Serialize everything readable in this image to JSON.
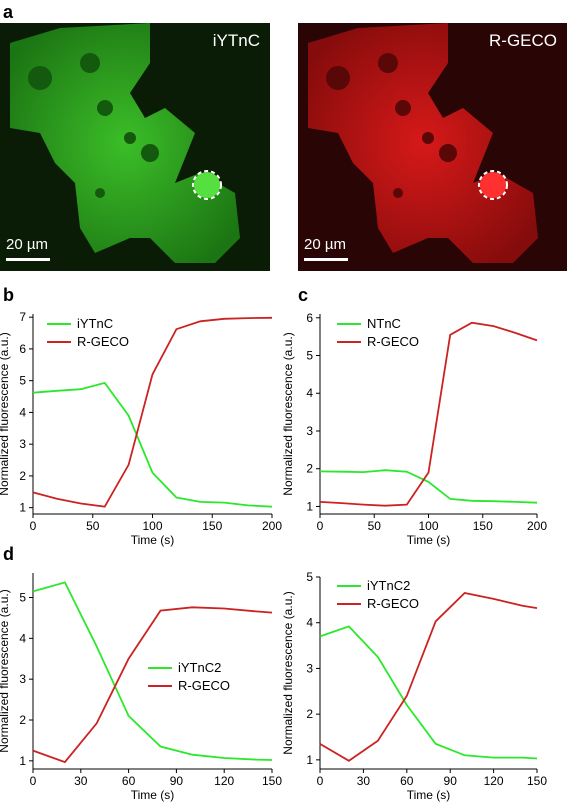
{
  "panel_a": {
    "letter": "a",
    "images": [
      {
        "label": "iYTnC",
        "scale_label": "20 µm"
      },
      {
        "label": "R-GECO",
        "scale_label": "20 µm"
      }
    ]
  },
  "panel_letters": {
    "b": "b",
    "c": "c",
    "d": "d"
  },
  "colors": {
    "green": "#2be82b",
    "red": "#cc2222"
  },
  "chart_data": [
    {
      "type": "line",
      "xlabel": "Time (s)",
      "ylabel": "Normalized fluorescence (a.u.)",
      "xlim": [
        0,
        200
      ],
      "ylim": [
        0.8,
        7.1
      ],
      "xticks": [
        0,
        50,
        100,
        150,
        200
      ],
      "yticks": [
        1,
        2,
        3,
        4,
        5,
        6,
        7
      ],
      "legend_position": "top-left",
      "x": [
        0,
        20,
        40,
        60,
        80,
        100,
        120,
        140,
        160,
        180,
        200
      ],
      "series": [
        {
          "name": "iYTnC",
          "color": "#2be82b",
          "values": [
            4.62,
            4.68,
            4.73,
            4.93,
            3.9,
            2.1,
            1.32,
            1.18,
            1.16,
            1.07,
            1.03
          ]
        },
        {
          "name": "R-GECO",
          "color": "#cc2222",
          "values": [
            1.48,
            1.28,
            1.13,
            1.03,
            2.35,
            5.2,
            6.62,
            6.87,
            6.95,
            6.97,
            6.98
          ]
        }
      ]
    },
    {
      "type": "line",
      "xlabel": "Time (s)",
      "ylabel": "Normalized fluorescence (a.u.)",
      "xlim": [
        0,
        200
      ],
      "ylim": [
        0.8,
        6.1
      ],
      "xticks": [
        0,
        50,
        100,
        150,
        200
      ],
      "yticks": [
        1,
        2,
        3,
        4,
        5,
        6
      ],
      "legend_position": "top-left",
      "x": [
        0,
        20,
        40,
        60,
        80,
        100,
        120,
        140,
        160,
        180,
        200
      ],
      "series": [
        {
          "name": "NTnC",
          "color": "#2be82b",
          "values": [
            1.93,
            1.92,
            1.91,
            1.96,
            1.92,
            1.65,
            1.2,
            1.15,
            1.14,
            1.12,
            1.1
          ]
        },
        {
          "name": "R-GECO",
          "color": "#cc2222",
          "values": [
            1.12,
            1.09,
            1.05,
            1.02,
            1.05,
            1.9,
            5.55,
            5.87,
            5.78,
            5.6,
            5.4
          ]
        }
      ]
    },
    {
      "type": "line",
      "xlabel": "Time (s)",
      "ylabel": "Normalized fluorescence (a.u.)",
      "xlim": [
        0,
        150
      ],
      "ylim": [
        0.8,
        5.6
      ],
      "xticks": [
        0,
        30,
        60,
        90,
        120,
        150
      ],
      "yticks": [
        1,
        2,
        3,
        4,
        5
      ],
      "legend_position": "center-right",
      "x": [
        0,
        20,
        40,
        60,
        80,
        100,
        120,
        140,
        150
      ],
      "series": [
        {
          "name": "iYTnC2",
          "color": "#2be82b",
          "values": [
            5.15,
            5.37,
            3.8,
            2.1,
            1.35,
            1.15,
            1.07,
            1.03,
            1.02
          ]
        },
        {
          "name": "R-GECO",
          "color": "#cc2222",
          "values": [
            1.25,
            0.97,
            1.92,
            3.5,
            4.68,
            4.76,
            4.73,
            4.66,
            4.63
          ]
        }
      ]
    },
    {
      "type": "line",
      "xlabel": "Time (s)",
      "ylabel": "Normalized fluorescence (a.u.)",
      "xlim": [
        0,
        150
      ],
      "ylim": [
        0.8,
        5.0
      ],
      "xticks": [
        0,
        30,
        60,
        90,
        120,
        150
      ],
      "yticks": [
        1,
        2,
        3,
        4,
        5
      ],
      "legend_position": "top-left",
      "x": [
        0,
        20,
        40,
        60,
        80,
        100,
        120,
        140,
        150
      ],
      "series": [
        {
          "name": "iYTnC2",
          "color": "#2be82b",
          "values": [
            3.7,
            3.92,
            3.25,
            2.2,
            1.35,
            1.1,
            1.05,
            1.05,
            1.03
          ]
        },
        {
          "name": "R-GECO",
          "color": "#cc2222",
          "values": [
            1.35,
            0.98,
            1.42,
            2.4,
            4.03,
            4.65,
            4.52,
            4.37,
            4.32
          ]
        }
      ]
    }
  ]
}
